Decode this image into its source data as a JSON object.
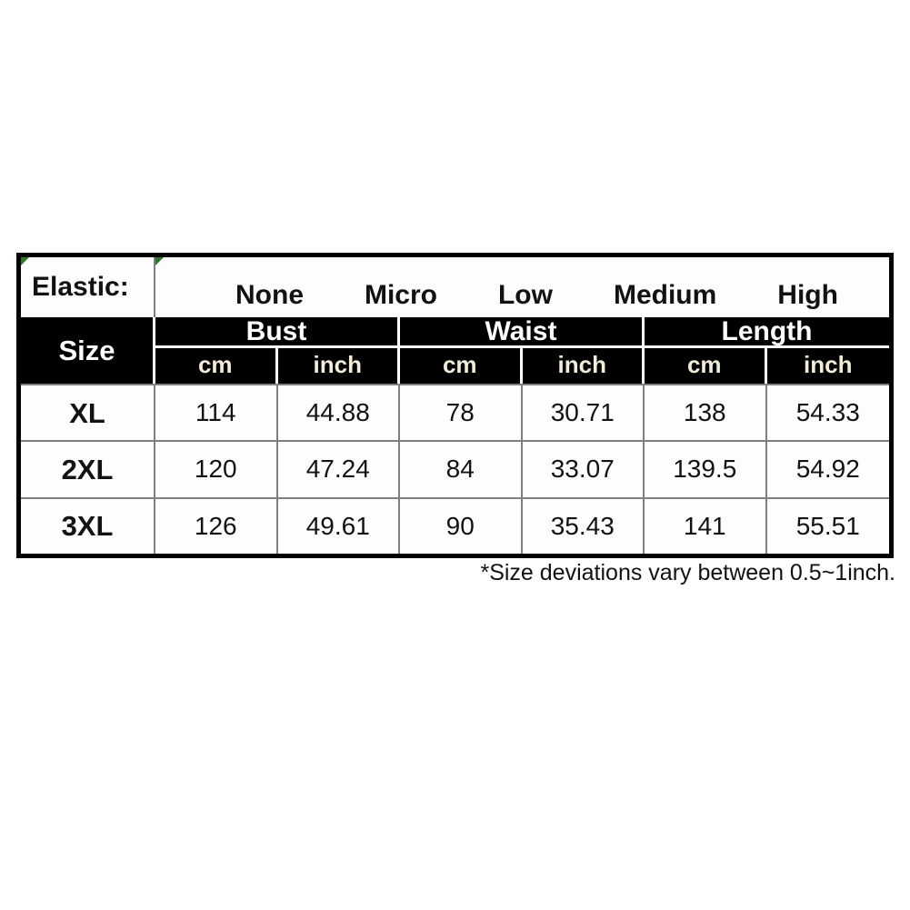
{
  "chart_data": {
    "type": "table",
    "elastic": {
      "label": "Elastic:",
      "levels": [
        "None",
        "Micro",
        "Low",
        "Medium",
        "High"
      ]
    },
    "header": {
      "size": "Size",
      "groups": [
        "Bust",
        "Waist",
        "Length"
      ],
      "units": [
        "cm",
        "inch",
        "cm",
        "inch",
        "cm",
        "inch"
      ]
    },
    "rows": [
      {
        "size": "XL",
        "values": [
          "114",
          "44.88",
          "78",
          "30.71",
          "138",
          "54.33"
        ]
      },
      {
        "size": "2XL",
        "values": [
          "120",
          "47.24",
          "84",
          "33.07",
          "139.5",
          "54.92"
        ]
      },
      {
        "size": "3XL",
        "values": [
          "126",
          "49.61",
          "90",
          "35.43",
          "141",
          "55.51"
        ]
      }
    ],
    "footnote": "*Size deviations vary between 0.5~1inch."
  },
  "colors": {
    "header_bg": "#000000",
    "header_text": "#ffffff",
    "unit_text": "#f2ecd8",
    "grid_line": "#7f7f7f",
    "outer_border": "#000000",
    "comment_marker_green": "#2a7a2a",
    "page_bg": "#ffffff"
  }
}
